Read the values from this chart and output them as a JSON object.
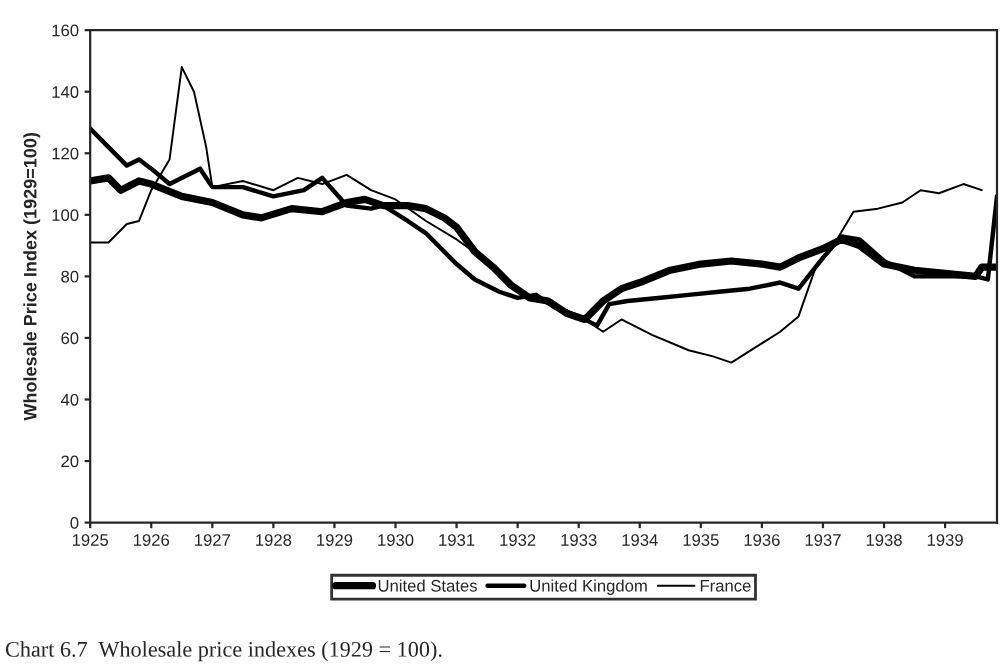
{
  "chart_data": {
    "type": "line",
    "ylabel": "Wholesale Price Index (1929=100)",
    "xlim": [
      1925,
      1939.85
    ],
    "xticks": [
      1925,
      1926,
      1927,
      1928,
      1929,
      1930,
      1931,
      1932,
      1933,
      1934,
      1935,
      1936,
      1937,
      1938,
      1939
    ],
    "ylim": [
      0,
      160
    ],
    "yticks": [
      0,
      20,
      40,
      60,
      80,
      100,
      120,
      140,
      160
    ],
    "grid": false,
    "legend": "bottom",
    "annotations": [
      "Chart 6.7  Wholesale price indexes (1929 = 100)."
    ],
    "series": [
      {
        "name": "United States",
        "color": "#000000",
        "x": [
          1925,
          1925.3,
          1925.5,
          1925.8,
          1926,
          1926.5,
          1927,
          1927.5,
          1927.8,
          1928.3,
          1928.8,
          1929.2,
          1929.5,
          1929.8,
          1930.2,
          1930.5,
          1930.8,
          1931,
          1931.3,
          1931.6,
          1931.9,
          1932.2,
          1932.5,
          1932.8,
          1933.1,
          1933.4,
          1933.7,
          1934,
          1934.5,
          1935,
          1935.5,
          1936,
          1936.3,
          1936.6,
          1937,
          1937.3,
          1937.6,
          1938,
          1938.5,
          1939,
          1939.5,
          1939.6,
          1939.85
        ],
        "values": [
          111,
          112,
          108,
          111,
          110,
          106,
          104,
          100,
          99,
          102,
          101,
          104,
          105,
          103,
          103,
          102,
          99,
          96,
          88,
          83,
          77,
          73,
          72,
          68,
          66,
          72,
          76,
          78,
          82,
          84,
          85,
          84,
          83,
          86,
          89,
          92,
          90,
          84,
          82,
          81,
          80,
          83,
          83
        ]
      },
      {
        "name": "United Kingdom",
        "color": "#000000",
        "x": [
          1925,
          1925.3,
          1925.6,
          1925.8,
          1926,
          1926.3,
          1926.8,
          1927,
          1927.5,
          1928,
          1928.5,
          1928.8,
          1929.2,
          1929.6,
          1929.8,
          1930.2,
          1930.5,
          1931,
          1931.3,
          1931.7,
          1932,
          1932.3,
          1932.6,
          1933,
          1933.3,
          1933.5,
          1933.8,
          1934.3,
          1934.8,
          1935.3,
          1935.8,
          1936.3,
          1936.6,
          1937,
          1937.3,
          1937.6,
          1938,
          1938.5,
          1939,
          1939.5,
          1939.7,
          1939.85
        ],
        "values": [
          128,
          122,
          116,
          118,
          115,
          110,
          115,
          109,
          109,
          106,
          108,
          112,
          103,
          102,
          103,
          98,
          94,
          84,
          79,
          75,
          73,
          74,
          70,
          67,
          64,
          71,
          72,
          73,
          74,
          75,
          76,
          78,
          76,
          86,
          93,
          92,
          85,
          80,
          80,
          80,
          79,
          106
        ]
      },
      {
        "name": "France",
        "color": "#000000",
        "x": [
          1925,
          1925.3,
          1925.6,
          1925.8,
          1926,
          1926.3,
          1926.5,
          1926.7,
          1926.9,
          1927,
          1927.5,
          1928,
          1928.4,
          1928.8,
          1929.2,
          1929.6,
          1930,
          1930.5,
          1931,
          1931.5,
          1931.8,
          1932.1,
          1932.5,
          1932.8,
          1933.1,
          1933.4,
          1933.7,
          1934.2,
          1934.8,
          1935.2,
          1935.5,
          1935.9,
          1936.3,
          1936.6,
          1936.9,
          1937.2,
          1937.5,
          1937.9,
          1938.3,
          1938.6,
          1938.9,
          1939.3,
          1939.6
        ],
        "values": [
          91,
          91,
          97,
          98,
          108,
          118,
          148,
          140,
          122,
          109,
          111,
          108,
          112,
          110,
          113,
          108,
          105,
          98,
          92,
          85,
          80,
          74,
          71,
          69,
          66,
          62,
          66,
          61,
          56,
          54,
          52,
          57,
          62,
          67,
          84,
          91,
          101,
          102,
          104,
          108,
          107,
          110,
          108
        ]
      }
    ]
  }
}
